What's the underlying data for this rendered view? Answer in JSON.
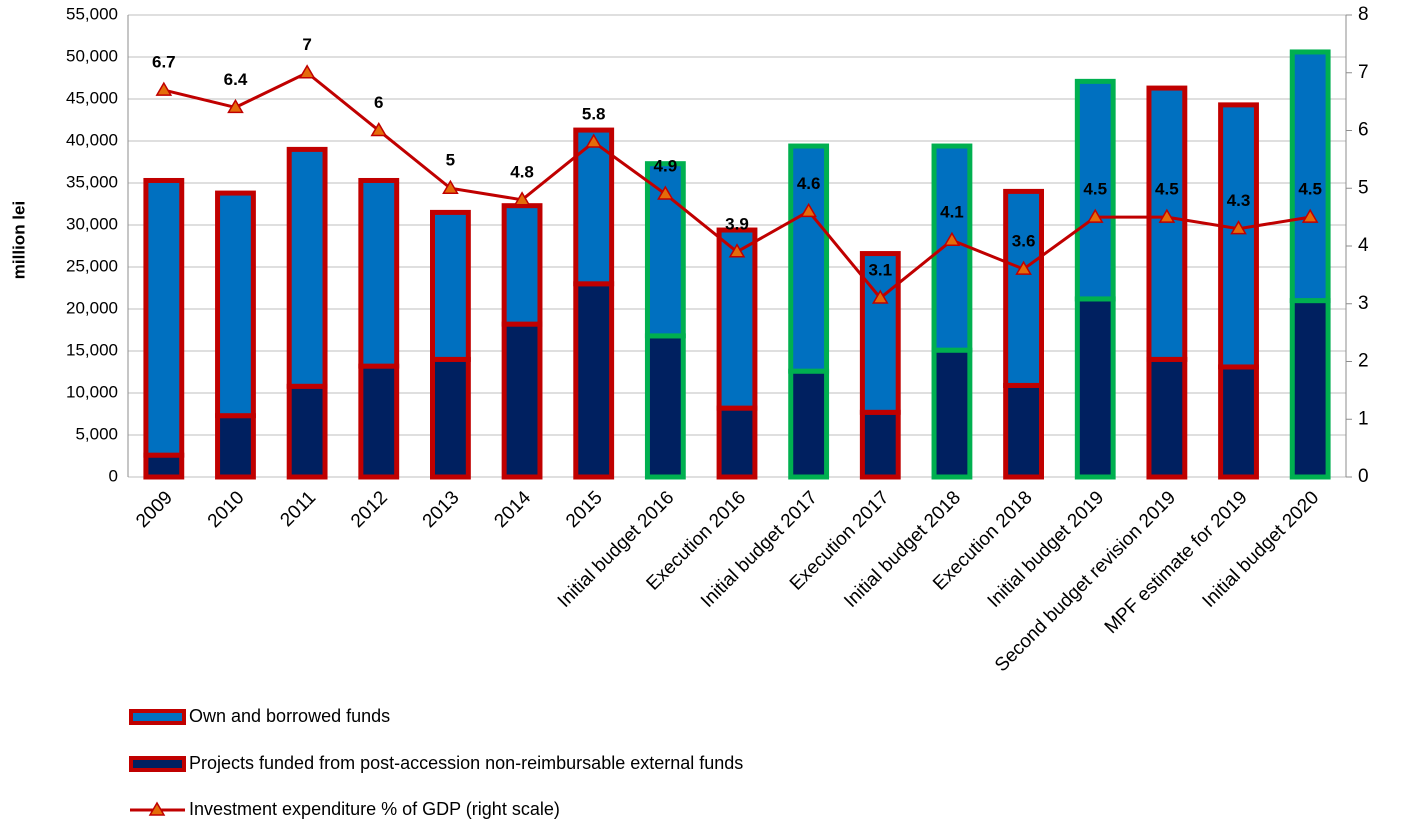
{
  "chart_data": {
    "type": "bar_line",
    "y_label": "million lei",
    "categories": [
      "2009",
      "2010",
      "2011",
      "2012",
      "2013",
      "2014",
      "2015",
      "Initial budget 2016",
      "Execution 2016",
      "Initial budget 2017",
      "Execution 2017",
      "Initial budget 2018",
      "Execution 2018",
      "Initial budget 2019",
      "Second budget revision 2019",
      "MPF estimate for 2019",
      "Initial budget 2020"
    ],
    "series": [
      {
        "name": "Own and borrowed funds",
        "color": "#0070c0",
        "stack": true,
        "values": [
          32700,
          26500,
          28200,
          22100,
          17500,
          14100,
          18300,
          20500,
          21200,
          26800,
          18900,
          24300,
          23100,
          25900,
          32300,
          31200,
          29600
        ]
      },
      {
        "name": "Projects funded from post-accession non-reimbursable external funds",
        "color": "#002060",
        "stack": true,
        "values": [
          2600,
          7300,
          10800,
          13200,
          14000,
          18200,
          23000,
          16800,
          8200,
          12600,
          7700,
          15100,
          10900,
          21200,
          14000,
          13100,
          21000
        ]
      },
      {
        "name": "Investment expenditure % of GDP (right scale)",
        "color": "#c00000",
        "axis": "y2",
        "type": "line",
        "values": [
          6.7,
          6.4,
          7.0,
          6.0,
          5.0,
          4.8,
          5.8,
          4.9,
          3.9,
          4.6,
          3.1,
          4.1,
          3.6,
          4.5,
          4.5,
          4.3,
          4.5
        ]
      }
    ],
    "bar_outline_colors": [
      "#c00000",
      "#c00000",
      "#c00000",
      "#c00000",
      "#c00000",
      "#c00000",
      "#c00000",
      "#00b050",
      "#c00000",
      "#00b050",
      "#c00000",
      "#00b050",
      "#c00000",
      "#00b050",
      "#c00000",
      "#c00000",
      "#00b050"
    ],
    "ylim": [
      0,
      55000
    ],
    "yticks": [
      {
        "value": 0,
        "label": "0"
      },
      {
        "value": 5000,
        "label": "5,000"
      },
      {
        "value": 10000,
        "label": "10,000"
      },
      {
        "value": 15000,
        "label": "15,000"
      },
      {
        "value": 20000,
        "label": "20,000"
      },
      {
        "value": 25000,
        "label": "25,000"
      },
      {
        "value": 30000,
        "label": "30,000"
      },
      {
        "value": 35000,
        "label": "35,000"
      },
      {
        "value": 40000,
        "label": "40,000"
      },
      {
        "value": 45000,
        "label": "45,000"
      },
      {
        "value": 50000,
        "label": "50,000"
      },
      {
        "value": 55000,
        "label": "55,000"
      }
    ],
    "y2lim": [
      0,
      8
    ],
    "y2ticks": [
      0,
      1,
      2,
      3,
      4,
      5,
      6,
      7,
      8
    ],
    "grid": true,
    "legend": "bottom-left"
  }
}
